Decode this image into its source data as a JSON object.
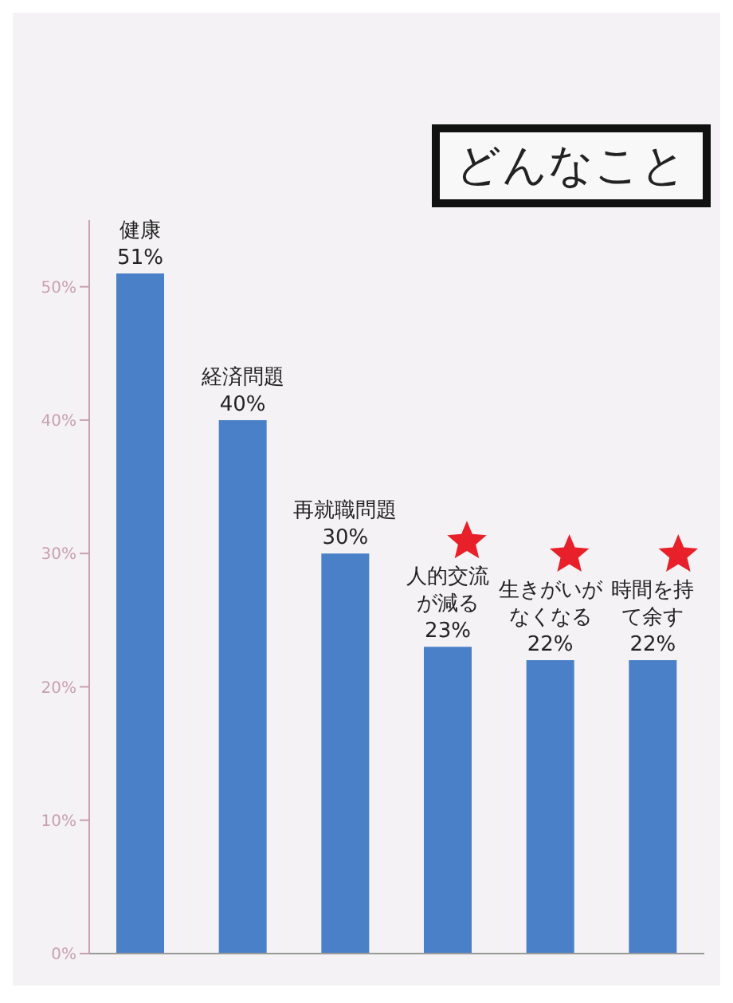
{
  "chart_data": {
    "type": "bar",
    "title": "どんなこと",
    "categories": [
      "健康",
      "経済問題",
      "再就職問題",
      "人的交流が減る",
      "生きがいがなくなる",
      "時間を持て余す"
    ],
    "values": [
      51,
      40,
      30,
      23,
      22,
      22
    ],
    "value_labels": [
      "51%",
      "40%",
      "30%",
      "23%",
      "22%",
      "22%"
    ],
    "color": "#4a80c8",
    "ylim": [
      0,
      55
    ],
    "yticks": [
      {
        "value": 0,
        "label": "0%"
      },
      {
        "value": 10,
        "label": "10%"
      },
      {
        "value": 20,
        "label": "20%"
      },
      {
        "value": 30,
        "label": "30%"
      },
      {
        "value": 40,
        "label": "40%"
      },
      {
        "value": 50,
        "label": "50%"
      }
    ],
    "grid": false,
    "legend": false
  }
}
